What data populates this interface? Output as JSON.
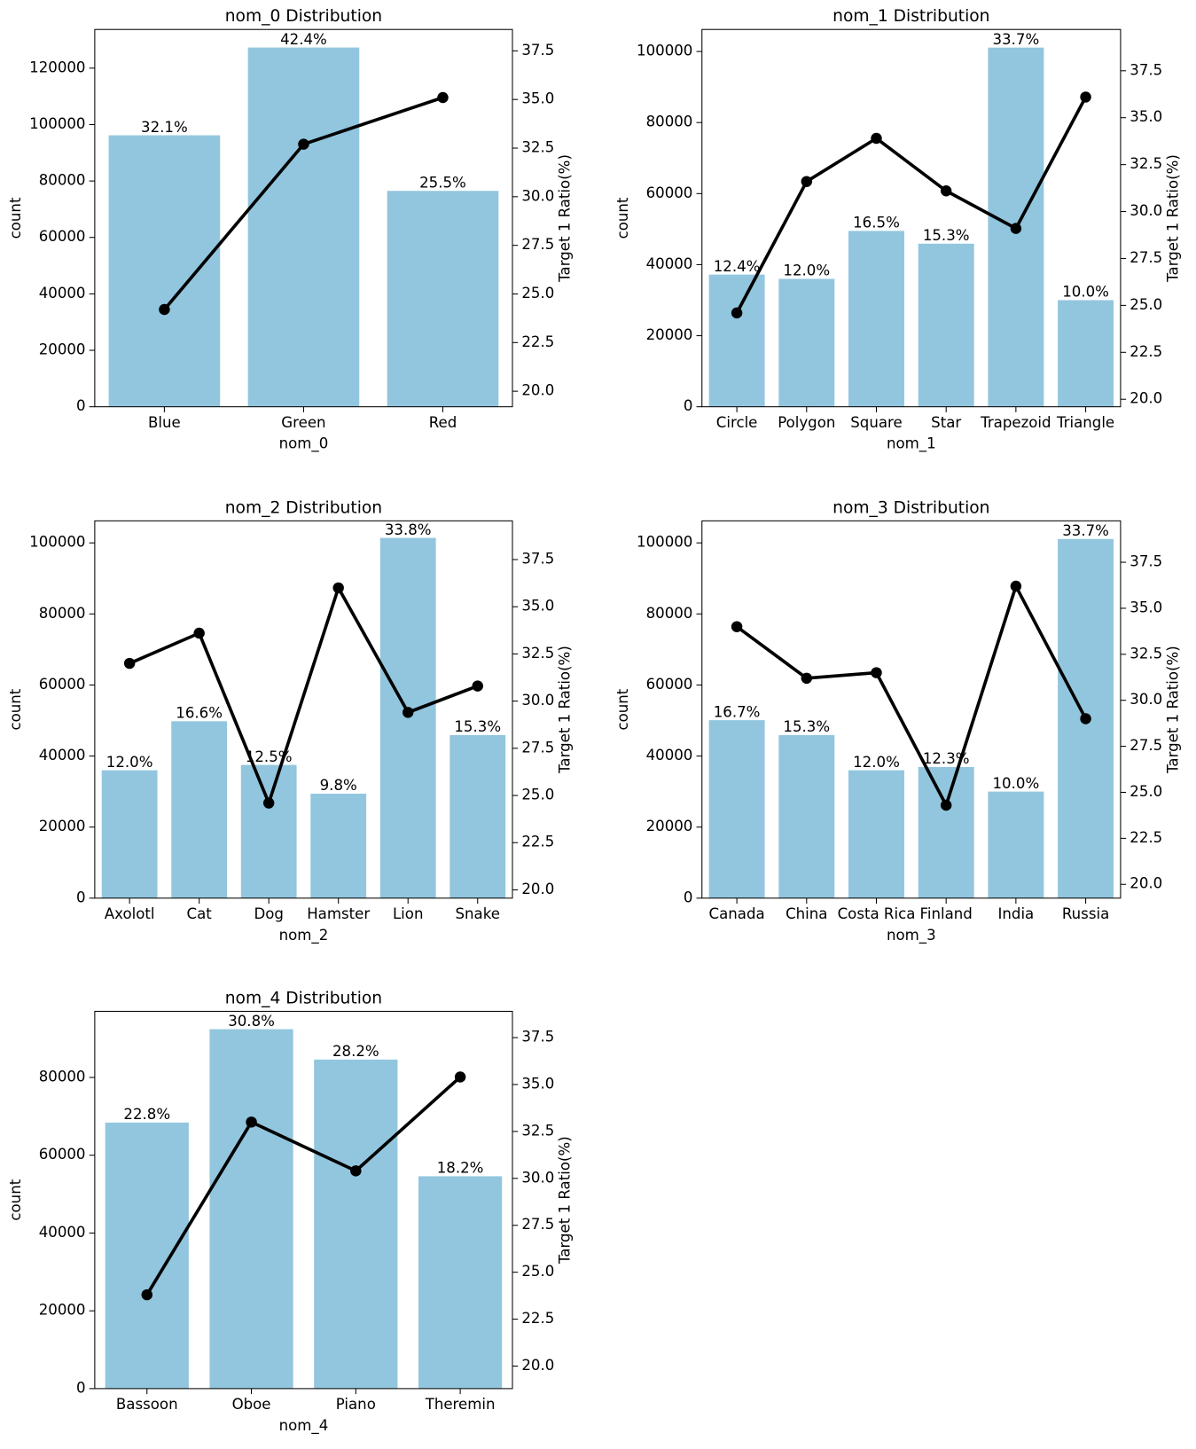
{
  "chart_data": [
    {
      "type": "bar",
      "title": "nom_0 Distribution",
      "x_label": "nom_0",
      "y_label": "count",
      "y2_label": "Target 1 Ratio(%)",
      "categories": [
        "Blue",
        "Green",
        "Red"
      ],
      "series": [
        {
          "type": "bar",
          "color": "#92c6de",
          "values": [
            96200,
            127300,
            76500
          ]
        },
        {
          "type": "line",
          "axis": "y2",
          "color": "#000000",
          "values": [
            24.2,
            32.7,
            35.1
          ]
        }
      ],
      "shares": {
        "values": [
          32.1,
          42.4,
          25.5
        ],
        "value_labels": [
          "32.1%",
          "42.4%",
          "25.5%"
        ]
      },
      "ylim": [
        0,
        133700
      ],
      "yticks": [
        0,
        20000,
        40000,
        60000,
        80000,
        100000,
        120000
      ],
      "y2lim": [
        19.2,
        38.6
      ],
      "y2ticks": [
        {
          "value": 20,
          "label": "20.0"
        },
        22.5,
        {
          "value": 25,
          "label": "25.0"
        },
        27.5,
        {
          "value": 30,
          "label": "30.0"
        },
        32.5,
        {
          "value": 35,
          "label": "35.0"
        },
        37.5
      ]
    },
    {
      "type": "bar",
      "title": "nom_1 Distribution",
      "x_label": "nom_1",
      "y_label": "count",
      "y2_label": "Target 1 Ratio(%)",
      "categories": [
        "Circle",
        "Polygon",
        "Square",
        "Star",
        "Trapezoid",
        "Triangle"
      ],
      "series": [
        {
          "type": "bar",
          "color": "#92c6de",
          "values": [
            37200,
            36000,
            49500,
            45900,
            101100,
            30000
          ]
        },
        {
          "type": "line",
          "axis": "y2",
          "color": "#000000",
          "values": [
            24.6,
            31.6,
            33.9,
            31.1,
            29.1,
            36.1
          ]
        }
      ],
      "shares": {
        "values": [
          12.4,
          12.0,
          16.5,
          15.3,
          33.7,
          10.0
        ],
        "value_labels": [
          "12.4%",
          "12.0%",
          "16.5%",
          "15.3%",
          "33.7%",
          "10.0%"
        ]
      },
      "ylim": [
        0,
        106200
      ],
      "yticks": [
        0,
        20000,
        40000,
        60000,
        80000,
        100000
      ],
      "y2lim": [
        19.6,
        39.7
      ],
      "y2ticks": [
        {
          "value": 20,
          "label": "20.0"
        },
        22.5,
        {
          "value": 25,
          "label": "25.0"
        },
        27.5,
        {
          "value": 30,
          "label": "30.0"
        },
        32.5,
        {
          "value": 35,
          "label": "35.0"
        },
        37.5
      ]
    },
    {
      "type": "bar",
      "title": "nom_2 Distribution",
      "x_label": "nom_2",
      "y_label": "count",
      "y2_label": "Target 1 Ratio(%)",
      "categories": [
        "Axolotl",
        "Cat",
        "Dog",
        "Hamster",
        "Lion",
        "Snake"
      ],
      "series": [
        {
          "type": "bar",
          "color": "#92c6de",
          "values": [
            36000,
            49800,
            37500,
            29400,
            101400,
            45900
          ]
        },
        {
          "type": "line",
          "axis": "y2",
          "color": "#000000",
          "values": [
            32.0,
            33.6,
            24.6,
            36.0,
            29.4,
            30.8
          ]
        }
      ],
      "shares": {
        "values": [
          12.0,
          16.6,
          12.5,
          9.8,
          33.8,
          15.3
        ],
        "value_labels": [
          "12.0%",
          "16.6%",
          "12.5%",
          "9.8%",
          "33.8%",
          "15.3%"
        ]
      },
      "ylim": [
        0,
        106200
      ],
      "yticks": [
        0,
        20000,
        40000,
        60000,
        80000,
        100000
      ],
      "y2lim": [
        19.56,
        39.55
      ],
      "y2ticks": [
        {
          "value": 20,
          "label": "20.0"
        },
        22.5,
        {
          "value": 25,
          "label": "25.0"
        },
        27.5,
        {
          "value": 30,
          "label": "30.0"
        },
        32.5,
        {
          "value": 35,
          "label": "35.0"
        },
        37.5
      ]
    },
    {
      "type": "bar",
      "title": "nom_3 Distribution",
      "x_label": "nom_3",
      "y_label": "count",
      "y2_label": "Target 1 Ratio(%)",
      "categories": [
        "Canada",
        "China",
        "Costa Rica",
        "Finland",
        "India",
        "Russia"
      ],
      "series": [
        {
          "type": "bar",
          "color": "#92c6de",
          "values": [
            50100,
            45900,
            36000,
            36900,
            30000,
            101100
          ]
        },
        {
          "type": "line",
          "axis": "y2",
          "color": "#000000",
          "values": [
            34.0,
            31.2,
            31.5,
            24.3,
            36.2,
            29.0
          ]
        }
      ],
      "shares": {
        "values": [
          16.7,
          15.3,
          12.0,
          12.3,
          10.0,
          33.7
        ],
        "value_labels": [
          "16.7%",
          "15.3%",
          "12.0%",
          "12.3%",
          "10.0%",
          "33.7%"
        ]
      },
      "ylim": [
        0,
        106200
      ],
      "yticks": [
        0,
        20000,
        40000,
        60000,
        80000,
        100000
      ],
      "y2lim": [
        19.25,
        39.75
      ],
      "y2ticks": [
        {
          "value": 20,
          "label": "20.0"
        },
        22.5,
        {
          "value": 25,
          "label": "25.0"
        },
        27.5,
        {
          "value": 30,
          "label": "30.0"
        },
        32.5,
        {
          "value": 35,
          "label": "35.0"
        },
        37.5
      ]
    },
    {
      "type": "bar",
      "title": "nom_4 Distribution",
      "x_label": "nom_4",
      "y_label": "count",
      "y2_label": "Target 1 Ratio(%)",
      "categories": [
        "Bassoon",
        "Oboe",
        "Piano",
        "Theremin"
      ],
      "series": [
        {
          "type": "bar",
          "color": "#92c6de",
          "values": [
            68400,
            92400,
            84600,
            54600
          ]
        },
        {
          "type": "line",
          "axis": "y2",
          "color": "#000000",
          "values": [
            23.8,
            33.0,
            30.4,
            35.4
          ]
        }
      ],
      "shares": {
        "values": [
          22.8,
          30.8,
          28.2,
          18.2
        ],
        "value_labels": [
          "22.8%",
          "30.8%",
          "28.2%",
          "18.2%"
        ]
      },
      "ylim": [
        0,
        97000
      ],
      "yticks": [
        0,
        20000,
        40000,
        60000,
        80000
      ],
      "y2lim": [
        18.8,
        38.9
      ],
      "y2ticks": [
        {
          "value": 20,
          "label": "20.0"
        },
        22.5,
        {
          "value": 25,
          "label": "25.0"
        },
        27.5,
        {
          "value": 30,
          "label": "30.0"
        },
        32.5,
        {
          "value": 35,
          "label": "35.0"
        },
        37.5
      ]
    }
  ]
}
